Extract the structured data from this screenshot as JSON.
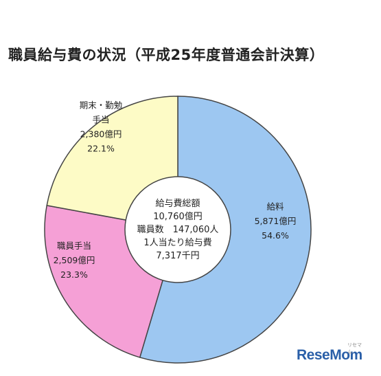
{
  "chart_data": {
    "type": "pie",
    "title": "職員給与費の状況（平成25年度普通会計決算）",
    "slices": [
      {
        "label": [
          "給料"
        ],
        "amount": "5,871億円",
        "percent_text": "54.6%",
        "value": 54.6,
        "color": "#9dc7f1"
      },
      {
        "label": [
          "職員手当"
        ],
        "amount": "2,509億円",
        "percent_text": "23.3%",
        "value": 23.3,
        "color": "#f5a0d6"
      },
      {
        "label": [
          "期末・勤勉",
          "手当"
        ],
        "amount": "2,380億円",
        "percent_text": "22.1%",
        "value": 22.1,
        "color": "#fdfbc6"
      }
    ],
    "center_text": [
      "給与費総額",
      "10,760億円",
      "職員数　147,060人",
      "1人当たり給与費",
      "7,317千円"
    ]
  },
  "logo": {
    "text": "ReseMom",
    "sub": "リセマム"
  }
}
